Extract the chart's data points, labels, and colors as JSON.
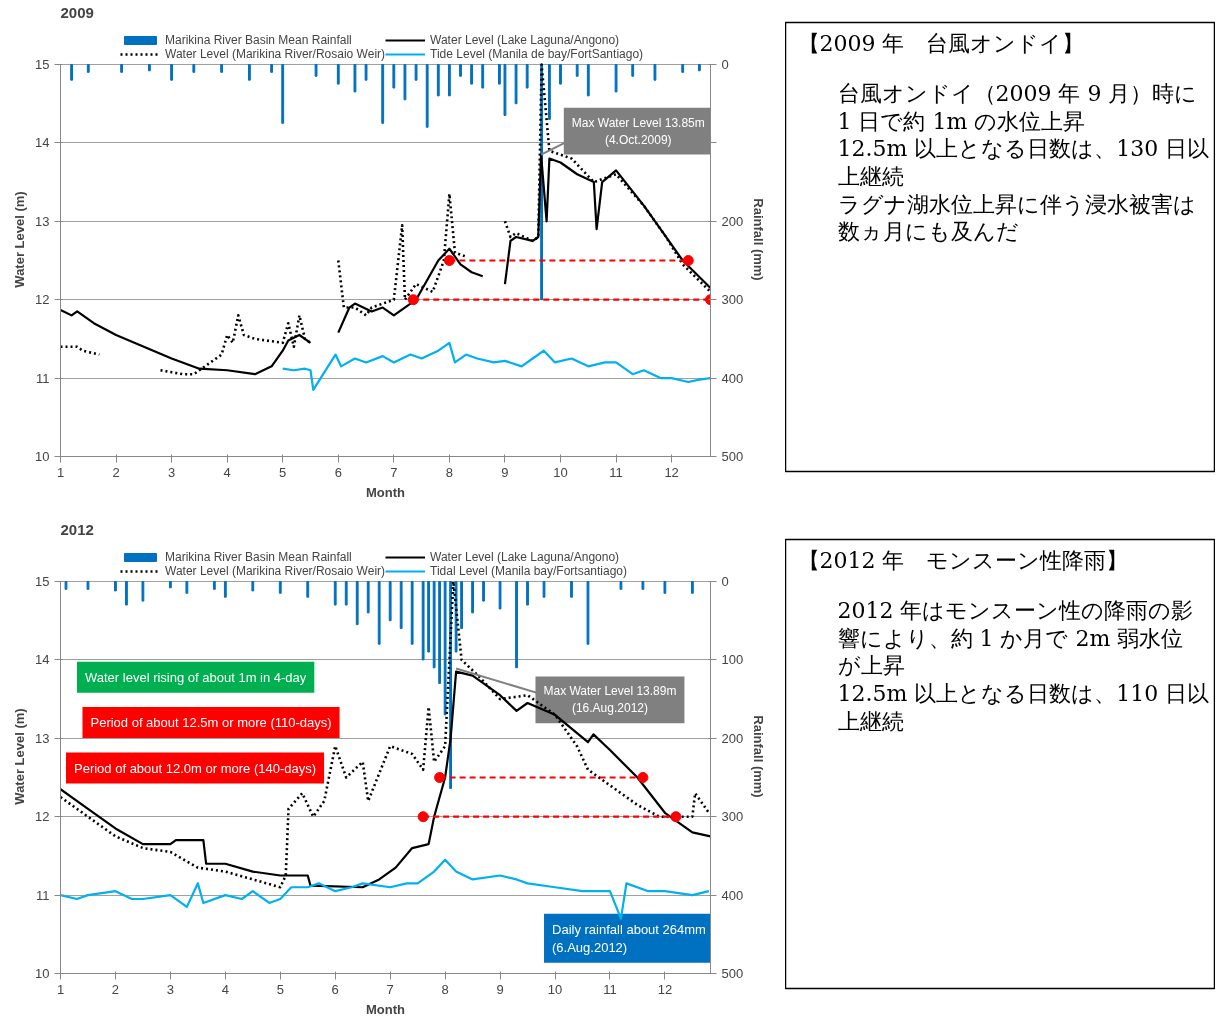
{
  "chart_data": [
    {
      "type": "line",
      "title": "2009",
      "xlabel": "Month",
      "ylabel": "Water Level (m)",
      "y2label": "Rainfall (mm)",
      "xlim": [
        1,
        12.7
      ],
      "xticks": [
        1,
        2,
        3,
        4,
        5,
        6,
        7,
        8,
        9,
        10,
        11,
        12
      ],
      "ylim": [
        10,
        15
      ],
      "yticks": [
        10,
        11,
        12,
        13,
        14,
        15
      ],
      "y2lim": [
        500,
        0
      ],
      "y2ticks": [
        0,
        {
          "value": 100,
          "label": null
        },
        200,
        300,
        400,
        500
      ],
      "grid": "y",
      "legend": "top",
      "series": [
        {
          "name": "Marikina River Basin Mean Rainfall",
          "type": "bar",
          "axis": "y2",
          "color": "#0070c0",
          "x": [
            1.2,
            1.5,
            2.1,
            2.6,
            3.0,
            3.4,
            3.9,
            4.4,
            4.8,
            5.0,
            5.6,
            6.0,
            6.3,
            6.5,
            6.8,
            7.0,
            7.2,
            7.4,
            7.6,
            7.8,
            8.0,
            8.2,
            8.4,
            8.6,
            8.9,
            9.0,
            9.2,
            9.4,
            9.66,
            9.8,
            10.0,
            10.3,
            10.5,
            11.0,
            11.3,
            11.7,
            12.2,
            12.5
          ],
          "values": [
            20,
            10,
            10,
            8,
            20,
            10,
            10,
            20,
            10,
            75,
            15,
            25,
            35,
            20,
            75,
            30,
            45,
            20,
            80,
            40,
            40,
            15,
            25,
            30,
            25,
            65,
            50,
            30,
            300,
            70,
            25,
            15,
            40,
            35,
            15,
            20,
            10,
            8
          ]
        },
        {
          "name": "Water Level (Marikina River/Rosaio Weir)",
          "line_style": "dotted",
          "color": "#000000",
          "x": [
            1.0,
            1.3,
            1.4,
            1.7,
            2.0,
            2.8,
            3.2,
            3.4,
            3.7,
            3.9,
            4.0,
            4.1,
            4.2,
            4.3,
            4.5,
            5.0,
            5.1,
            5.2,
            5.3,
            5.4,
            5.5,
            5.8,
            6.0,
            6.1,
            6.3,
            6.5,
            6.6,
            7.0,
            7.15,
            7.2,
            7.4,
            7.7,
            7.9,
            8.0,
            8.1,
            8.3,
            8.5,
            9.0,
            9.1,
            9.2,
            9.5,
            9.6,
            9.66,
            9.8,
            10.2,
            10.6,
            11.0,
            11.5,
            11.9,
            12.2,
            12.7
          ],
          "values": [
            11.4,
            11.4,
            11.35,
            11.3,
            null,
            11.1,
            11.05,
            11.05,
            11.2,
            11.3,
            11.55,
            11.45,
            11.8,
            11.55,
            11.5,
            11.45,
            11.7,
            11.4,
            11.8,
            11.5,
            11.45,
            null,
            12.5,
            11.9,
            11.9,
            11.8,
            11.9,
            12.0,
            12.95,
            12.0,
            12.2,
            12.1,
            12.5,
            13.35,
            12.6,
            12.55,
            null,
            13.0,
            12.8,
            12.85,
            12.75,
            12.8,
            15.0,
            13.9,
            13.8,
            13.5,
            13.6,
            13.2,
            12.8,
            12.45,
            12.1
          ]
        },
        {
          "name": "Water Level (Lake Laguna/Angono)",
          "line_style": "solid",
          "color": "#000000",
          "x": [
            1.0,
            1.2,
            1.3,
            1.6,
            2.0,
            2.5,
            3.0,
            3.5,
            4.0,
            4.5,
            4.8,
            5.0,
            5.1,
            5.3,
            5.5,
            5.8,
            6.0,
            6.2,
            6.3,
            6.6,
            6.8,
            7.0,
            7.3,
            7.4,
            7.8,
            8.0,
            8.2,
            8.4,
            8.6,
            8.9,
            9.0,
            9.1,
            9.2,
            9.5,
            9.6,
            9.65,
            9.75,
            9.8,
            10.0,
            10.3,
            10.6,
            10.65,
            10.75,
            11.0,
            11.5,
            11.9,
            12.2,
            12.7
          ],
          "values": [
            11.87,
            11.8,
            11.85,
            11.7,
            11.55,
            11.4,
            11.25,
            11.12,
            11.1,
            11.05,
            11.15,
            11.35,
            11.48,
            11.55,
            11.45,
            null,
            11.58,
            11.9,
            11.95,
            11.85,
            11.9,
            11.8,
            11.95,
            12.0,
            12.5,
            12.65,
            12.45,
            12.35,
            12.3,
            null,
            12.2,
            12.75,
            12.8,
            12.75,
            12.8,
            13.85,
            13.0,
            13.8,
            13.75,
            13.6,
            13.5,
            12.9,
            13.5,
            13.65,
            13.2,
            12.8,
            12.5,
            12.15
          ]
        },
        {
          "name": "Tide Level (Manila de bay/FortSantiago)",
          "line_style": "solid",
          "color": "#00b0f0",
          "x": [
            5.0,
            5.2,
            5.4,
            5.5,
            5.55,
            5.95,
            6.05,
            6.3,
            6.5,
            6.8,
            7.0,
            7.3,
            7.5,
            7.8,
            8.0,
            8.1,
            8.3,
            8.5,
            8.8,
            9.0,
            9.3,
            9.5,
            9.7,
            9.9,
            10.2,
            10.5,
            10.8,
            11.0,
            11.3,
            11.5,
            11.8,
            12.0,
            12.3,
            12.5,
            12.7
          ],
          "values": [
            11.12,
            11.1,
            11.12,
            11.1,
            10.85,
            11.3,
            11.15,
            11.25,
            11.2,
            11.28,
            11.2,
            11.3,
            11.25,
            11.35,
            11.45,
            11.2,
            11.3,
            11.25,
            11.2,
            11.22,
            11.15,
            11.25,
            11.35,
            11.2,
            11.25,
            11.15,
            11.2,
            11.2,
            11.05,
            11.1,
            11.0,
            11.0,
            10.95,
            10.98,
            11.0
          ]
        },
        {
          "line_style": "dashed",
          "marker": "circle",
          "color": "#ff0000",
          "x": [
            8.0,
            12.3
          ],
          "values": [
            12.5,
            12.5
          ]
        },
        {
          "line_style": "dashed",
          "marker": "circle",
          "color": "#ff0000",
          "x": [
            7.35,
            12.7
          ],
          "values": [
            12.0,
            12.0
          ]
        }
      ],
      "annotations": [
        {
          "text": "Max Water Level 13.85m\n(4.Oct.2009)",
          "x": 9.65,
          "y": 13.85
        }
      ]
    },
    {
      "type": "other",
      "title": "【2009 年　台風オンドイ】",
      "annotations": [
        "台風オンドイ（2009 年 9 月）時に 1 日で約 1m の水位上昇",
        "12.5m 以上となる日数は、130 日以上継続",
        "ラグナ湖水位上昇に伴う浸水被害は数ヵ月にも及んだ"
      ]
    },
    {
      "type": "line",
      "title": "2012",
      "xlabel": "Month",
      "ylabel": "Water Level (m)",
      "y2label": "Rainfall (mm)",
      "xlim": [
        1,
        12.83
      ],
      "xticks": [
        1,
        2,
        3,
        4,
        5,
        6,
        7,
        8,
        9,
        10,
        11,
        12
      ],
      "ylim": [
        10,
        15
      ],
      "yticks": [
        10,
        11,
        12,
        13,
        14,
        15
      ],
      "y2lim": [
        500,
        0
      ],
      "y2ticks": [
        0,
        100,
        200,
        300,
        400,
        500
      ],
      "grid": "y",
      "legend": "top",
      "series": [
        {
          "name": "Marikina River Basin Mean Rainfall",
          "type": "bar",
          "axis": "y2",
          "color": "#0070c0",
          "x": [
            1.1,
            1.5,
            2.0,
            2.2,
            2.5,
            3.0,
            3.3,
            3.8,
            4.0,
            4.5,
            5.0,
            5.5,
            6.0,
            6.2,
            6.4,
            6.6,
            6.8,
            7.0,
            7.2,
            7.4,
            7.6,
            7.7,
            7.8,
            7.9,
            8.0,
            8.1,
            8.2,
            8.3,
            8.5,
            8.7,
            9.0,
            9.3,
            9.5,
            9.8,
            10.3,
            10.6,
            11.2,
            11.6,
            12.0,
            12.5
          ],
          "values": [
            10,
            10,
            12,
            30,
            25,
            8,
            15,
            10,
            20,
            12,
            15,
            20,
            30,
            30,
            55,
            40,
            80,
            50,
            60,
            80,
            100,
            90,
            110,
            130,
            170,
            264,
            90,
            60,
            40,
            25,
            35,
            110,
            30,
            20,
            20,
            80,
            10,
            10,
            15,
            15
          ]
        },
        {
          "name": "Water Level (Marikina River/Rosaio Weir)",
          "line_style": "dotted",
          "color": "#000000",
          "x": [
            1.0,
            1.5,
            2.0,
            2.5,
            3.0,
            3.5,
            4.0,
            4.5,
            5.0,
            5.1,
            5.15,
            5.4,
            5.6,
            5.8,
            6.0,
            6.2,
            6.5,
            6.6,
            7.0,
            7.4,
            7.6,
            7.7,
            7.8,
            8.0,
            8.15,
            8.3,
            8.6,
            9.0,
            9.5,
            10.0,
            10.4,
            10.6,
            11.0,
            11.5,
            11.9,
            12.5,
            12.55,
            12.8
          ],
          "values": [
            12.25,
            12.0,
            11.75,
            11.6,
            11.55,
            11.35,
            11.3,
            11.2,
            11.1,
            11.25,
            12.1,
            12.3,
            12.0,
            12.2,
            12.9,
            12.5,
            12.7,
            12.2,
            12.9,
            12.8,
            12.6,
            13.4,
            12.7,
            12.9,
            15.0,
            14.0,
            13.8,
            13.5,
            13.55,
            13.3,
            12.9,
            12.6,
            12.4,
            12.15,
            12.0,
            12.0,
            12.3,
            12.05
          ]
        },
        {
          "name": "Water Level (Lake Laguna/Angono)",
          "line_style": "solid",
          "color": "#000000",
          "x": [
            1.0,
            1.5,
            2.0,
            2.5,
            3.0,
            3.1,
            3.6,
            3.65,
            4.0,
            4.5,
            5.0,
            5.5,
            5.55,
            6.5,
            6.8,
            7.1,
            7.4,
            7.7,
            7.8,
            8.0,
            8.1,
            8.2,
            8.5,
            9.0,
            9.3,
            9.5,
            10.0,
            10.6,
            10.7,
            11.0,
            11.5,
            12.0,
            12.5,
            12.83
          ],
          "values": [
            12.35,
            12.1,
            11.85,
            11.65,
            11.65,
            11.7,
            11.7,
            11.4,
            11.4,
            11.3,
            11.25,
            11.25,
            11.12,
            11.1,
            11.2,
            11.35,
            11.6,
            11.65,
            12.0,
            12.5,
            13.0,
            13.85,
            13.8,
            13.55,
            13.35,
            13.45,
            13.3,
            12.95,
            13.05,
            12.85,
            12.5,
            12.05,
            11.8,
            11.75
          ]
        },
        {
          "name": "Tidal Level (Manila bay/Fortsantiago)",
          "line_style": "solid",
          "color": "#00b0f0",
          "x": [
            1.0,
            1.3,
            1.5,
            2.0,
            2.3,
            2.5,
            3.0,
            3.3,
            3.5,
            3.6,
            4.0,
            4.3,
            4.5,
            4.8,
            5.0,
            5.2,
            5.5,
            5.7,
            6.0,
            6.3,
            6.5,
            7.0,
            7.3,
            7.5,
            7.8,
            8.0,
            8.2,
            8.5,
            9.0,
            9.3,
            9.5,
            10.0,
            10.5,
            11.0,
            11.2,
            11.3,
            11.7,
            12.0,
            12.5,
            12.8
          ],
          "values": [
            11.0,
            10.95,
            11.0,
            11.05,
            10.95,
            10.95,
            11.0,
            10.85,
            11.15,
            10.9,
            11.0,
            10.95,
            11.05,
            10.9,
            10.95,
            11.1,
            11.1,
            11.15,
            11.05,
            11.1,
            11.15,
            11.1,
            11.15,
            11.15,
            11.3,
            11.45,
            11.3,
            11.2,
            11.25,
            11.2,
            11.15,
            11.1,
            11.05,
            11.05,
            10.7,
            11.15,
            11.05,
            11.05,
            11.0,
            11.05
          ]
        },
        {
          "line_style": "dashed",
          "marker": "circle",
          "color": "#ff0000",
          "x": [
            7.9,
            11.6
          ],
          "values": [
            12.5,
            12.5
          ]
        },
        {
          "line_style": "dashed",
          "marker": "circle",
          "color": "#ff0000",
          "x": [
            7.6,
            12.2
          ],
          "values": [
            12.0,
            12.0
          ]
        }
      ],
      "annotations": [
        "Water level rising of about 1m in 4-day",
        "Period of about 12.5m or more (110-days)",
        "Period of about 12.0m or more (140-days)",
        "Daily rainfall about 264mm\n(6.Aug.2012)",
        {
          "text": "Max Water Level 13.89m\n(16.Aug.2012)",
          "x": 8.2,
          "y": 13.89
        }
      ]
    },
    {
      "type": "other",
      "title": "【2012 年　モンスーン性降雨】",
      "annotations": [
        "2012 年はモンスーン性の降雨の影響により、約 1 か月で 2m 弱水位が上昇",
        "12.5m 以上となる日数は、110 日以上継続"
      ]
    }
  ]
}
